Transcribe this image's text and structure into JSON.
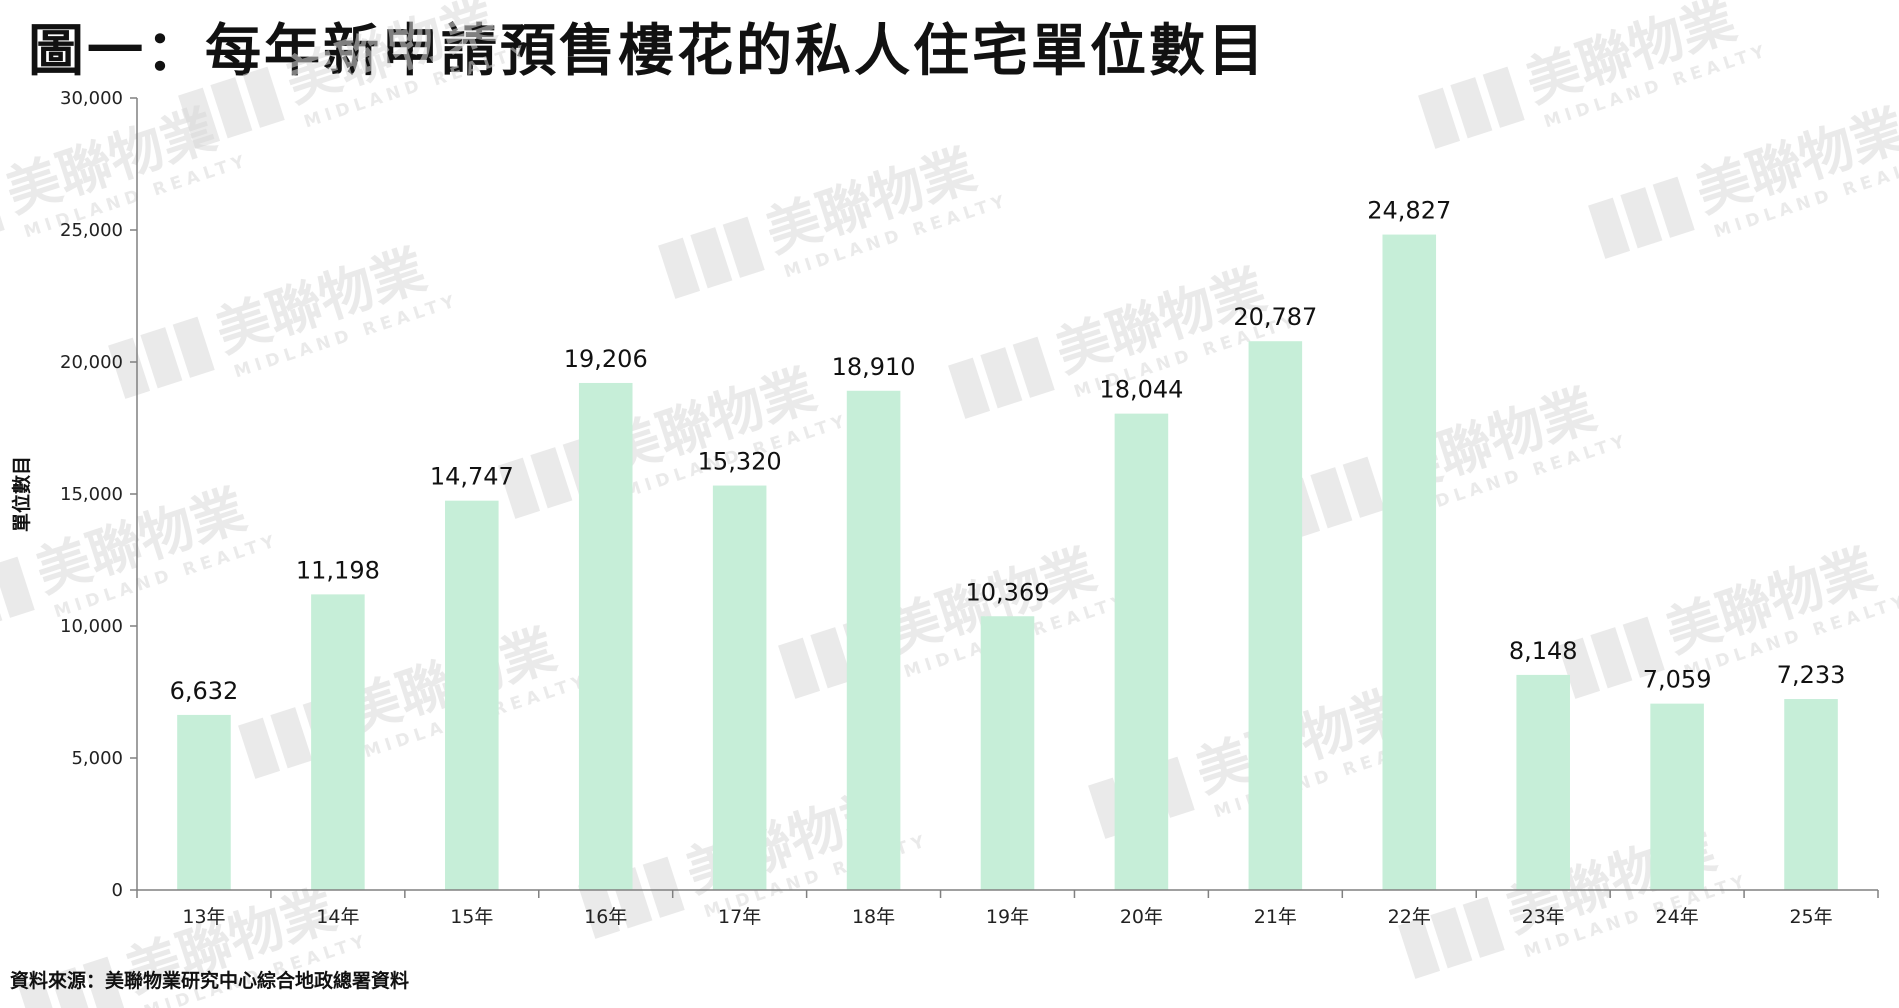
{
  "chart_data": {
    "type": "bar",
    "title": "圖一：每年新申請預售樓花的私人住宅單位數目",
    "xlabel": "",
    "ylabel": "單位數目",
    "categories": [
      "13年",
      "14年",
      "15年",
      "16年",
      "17年",
      "18年",
      "19年",
      "20年",
      "21年",
      "22年",
      "23年",
      "24年",
      "25年"
    ],
    "values": [
      6632,
      11198,
      14747,
      19206,
      15320,
      18910,
      10369,
      18044,
      20787,
      24827,
      8148,
      7059,
      7233
    ],
    "data_labels": [
      "6,632",
      "11,198",
      "14,747",
      "19,206",
      "15,320",
      "18,910",
      "10,369",
      "18,044",
      "20,787",
      "24,827",
      "8,148",
      "7,059",
      "7,233"
    ],
    "ylim": [
      0,
      30000
    ],
    "yticks": [
      0,
      5000,
      10000,
      15000,
      20000,
      25000,
      30000
    ],
    "ytick_labels": [
      "0",
      "5,000",
      "10,000",
      "15,000",
      "20,000",
      "25,000",
      "30,000"
    ],
    "grid": false,
    "legend": "none",
    "bar_color": "#c6eed8"
  },
  "source_note": "資料來源：美聯物業研究中心綜合地政總署資料",
  "watermark": {
    "brand": "美聯物業",
    "brand_en": "MIDLAND REALTY",
    "color": "#d9d9d9"
  }
}
